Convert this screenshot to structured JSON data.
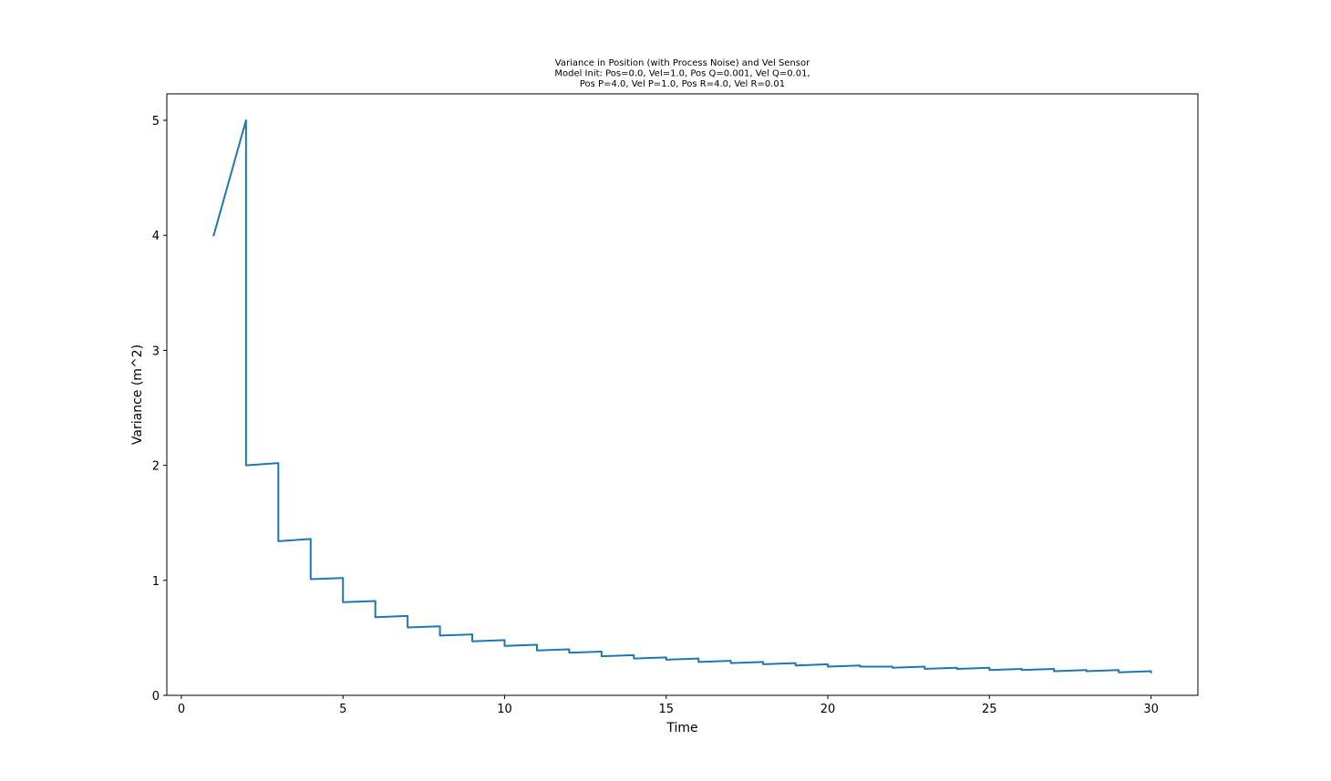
{
  "chart_data": {
    "type": "line",
    "title_lines": [
      "Variance in Position (with Process Noise) and Vel Sensor",
      "Model Init: Pos=0.0, Vel=1.0, Pos Q=0.001, Vel Q=0.01,",
      "Pos P=4.0, Vel P=1.0, Pos R=4.0, Vel R=0.01"
    ],
    "xlabel": "Time",
    "ylabel": "Variance (m^2)",
    "xlim": [
      -0.45,
      31.45
    ],
    "ylim": [
      -0.0,
      5.23
    ],
    "x_ticks": [
      0,
      5,
      10,
      15,
      20,
      25,
      30
    ],
    "y_ticks": [
      0,
      1,
      2,
      3,
      4,
      5
    ],
    "grid": false,
    "series": [
      {
        "color": "#1f77b4",
        "x": [
          1,
          2,
          2,
          3,
          3,
          4,
          4,
          5,
          5,
          6,
          6,
          7,
          7,
          8,
          8,
          9,
          9,
          10,
          10,
          11,
          11,
          12,
          12,
          13,
          13,
          14,
          14,
          15,
          15,
          16,
          16,
          17,
          17,
          18,
          18,
          19,
          19,
          20,
          20,
          21,
          21,
          22,
          22,
          23,
          23,
          24,
          24,
          25,
          25,
          26,
          26,
          27,
          27,
          28,
          28,
          29,
          29,
          30,
          30
        ],
        "y": [
          4.0,
          5.0,
          2.0,
          2.02,
          1.34,
          1.36,
          1.01,
          1.02,
          0.81,
          0.82,
          0.68,
          0.69,
          0.59,
          0.6,
          0.52,
          0.53,
          0.47,
          0.48,
          0.43,
          0.44,
          0.39,
          0.4,
          0.37,
          0.38,
          0.34,
          0.35,
          0.32,
          0.33,
          0.31,
          0.32,
          0.29,
          0.3,
          0.28,
          0.29,
          0.27,
          0.28,
          0.26,
          0.27,
          0.25,
          0.26,
          0.25,
          0.25,
          0.24,
          0.25,
          0.23,
          0.24,
          0.23,
          0.24,
          0.22,
          0.23,
          0.22,
          0.23,
          0.21,
          0.22,
          0.21,
          0.22,
          0.2,
          0.21,
          0.2
        ]
      }
    ]
  }
}
